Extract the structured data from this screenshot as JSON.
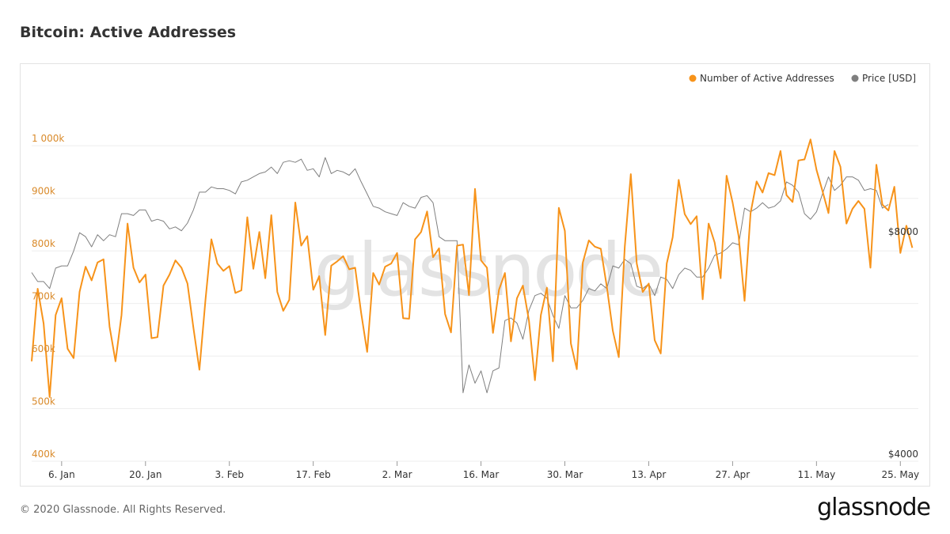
{
  "page": {
    "title": "Bitcoin: Active Addresses",
    "footer": "© 2020 Glassnode. All Rights Reserved.",
    "brand": "glassnode",
    "watermark": "glassnode"
  },
  "chart_data": {
    "type": "line",
    "title": "Bitcoin: Active Addresses",
    "legend_position": "top-right",
    "grid": "horizontal",
    "colors": {
      "addresses": "#f7931a",
      "price": "#7f7f7f",
      "left_axis_text": "#d98a2a",
      "right_axis_text": "#333333"
    },
    "x_start": "2020-01-01",
    "x_end": "2020-05-28",
    "x_ticks": [
      {
        "date": "2020-01-06",
        "label": "6. Jan"
      },
      {
        "date": "2020-01-20",
        "label": "20. Jan"
      },
      {
        "date": "2020-02-03",
        "label": "3. Feb"
      },
      {
        "date": "2020-02-17",
        "label": "17. Feb"
      },
      {
        "date": "2020-03-02",
        "label": "2. Mar"
      },
      {
        "date": "2020-03-16",
        "label": "16. Mar"
      },
      {
        "date": "2020-03-30",
        "label": "30. Mar"
      },
      {
        "date": "2020-04-13",
        "label": "13. Apr"
      },
      {
        "date": "2020-04-27",
        "label": "27. Apr"
      },
      {
        "date": "2020-05-11",
        "label": "11. May"
      },
      {
        "date": "2020-05-25",
        "label": "25. May"
      }
    ],
    "y_left": {
      "range": [
        400000,
        1050000
      ],
      "ticks": [
        400000,
        500000,
        600000,
        700000,
        800000,
        900000,
        1000000
      ],
      "tick_labels": [
        "400k",
        "500k",
        "600k",
        "700k",
        "800k",
        "900k",
        "1 000k"
      ]
    },
    "y_right": {
      "scale": "log",
      "range": [
        4000,
        11600
      ],
      "ticks": [
        4000,
        8000
      ],
      "tick_labels": [
        "$4000",
        "$8000"
      ]
    },
    "series": [
      {
        "name": "Number of Active Addresses",
        "axis": "left",
        "values": [
          590000,
          728000,
          662000,
          522000,
          678000,
          710000,
          614000,
          596000,
          722000,
          770000,
          744000,
          778000,
          784000,
          656000,
          590000,
          678000,
          852000,
          768000,
          740000,
          755000,
          634000,
          636000,
          734000,
          755000,
          782000,
          768000,
          738000,
          654000,
          574000,
          706000,
          822000,
          776000,
          762000,
          771000,
          720000,
          725000,
          864000,
          766000,
          836000,
          748000,
          868000,
          722000,
          686000,
          707000,
          892000,
          810000,
          828000,
          726000,
          752000,
          640000,
          772000,
          780000,
          790000,
          765000,
          768000,
          682000,
          608000,
          758000,
          736000,
          770000,
          776000,
          796000,
          672000,
          671000,
          822000,
          836000,
          875000,
          788000,
          805000,
          680000,
          645000,
          810000,
          812000,
          716000,
          918000,
          782000,
          768000,
          644000,
          726000,
          758000,
          628000,
          710000,
          734000,
          668000,
          554000,
          678000,
          730000,
          590000,
          882000,
          838000,
          624000,
          575000,
          778000,
          820000,
          808000,
          804000,
          732000,
          648000,
          598000,
          808000,
          946000,
          776000,
          722000,
          738000,
          630000,
          605000,
          776000,
          826000,
          935000,
          870000,
          851000,
          866000,
          708000,
          852000,
          816000,
          748000,
          943000,
          892000,
          828000,
          705000,
          872000,
          932000,
          911000,
          948000,
          944000,
          990000,
          906000,
          893000,
          972000,
          974000,
          1012000,
          954000,
          914000,
          872000,
          990000,
          960000,
          852000,
          880000,
          895000,
          880000,
          768000,
          964000,
          888000,
          877000,
          922000,
          796000,
          848000,
          806000
        ]
      },
      {
        "name": "Price [USD]",
        "axis": "right",
        "values": [
          7200,
          7000,
          7000,
          6850,
          7300,
          7350,
          7350,
          7700,
          8150,
          8050,
          7800,
          8100,
          7950,
          8100,
          8050,
          8650,
          8650,
          8600,
          8750,
          8750,
          8450,
          8500,
          8450,
          8250,
          8300,
          8200,
          8400,
          8750,
          9250,
          9250,
          9400,
          9350,
          9350,
          9300,
          9200,
          9550,
          9600,
          9700,
          9800,
          9850,
          10000,
          9800,
          10150,
          10200,
          10150,
          10250,
          9900,
          9950,
          9700,
          10300,
          9800,
          9900,
          9850,
          9750,
          9950,
          9550,
          9200,
          8850,
          8800,
          8700,
          8650,
          8600,
          8950,
          8850,
          8800,
          9100,
          9150,
          8950,
          8050,
          7950,
          7950,
          7950,
          4950,
          5400,
          5100,
          5300,
          4950,
          5300,
          5350,
          6200,
          6250,
          6150,
          5850,
          6400,
          6700,
          6750,
          6650,
          6300,
          6050,
          6700,
          6450,
          6450,
          6600,
          6850,
          6800,
          6950,
          6850,
          7350,
          7300,
          7500,
          7400,
          6900,
          6850,
          6950,
          6700,
          7100,
          7050,
          6850,
          7150,
          7300,
          7250,
          7100,
          7100,
          7300,
          7600,
          7650,
          7750,
          7900,
          7850,
          8800,
          8700,
          8800,
          8950,
          8800,
          8850,
          9000,
          9550,
          9450,
          9250,
          8650,
          8500,
          8700,
          9200,
          9700,
          9300,
          9450,
          9700,
          9700,
          9600,
          9300,
          9350,
          9300,
          8800,
          8900
        ]
      }
    ]
  }
}
